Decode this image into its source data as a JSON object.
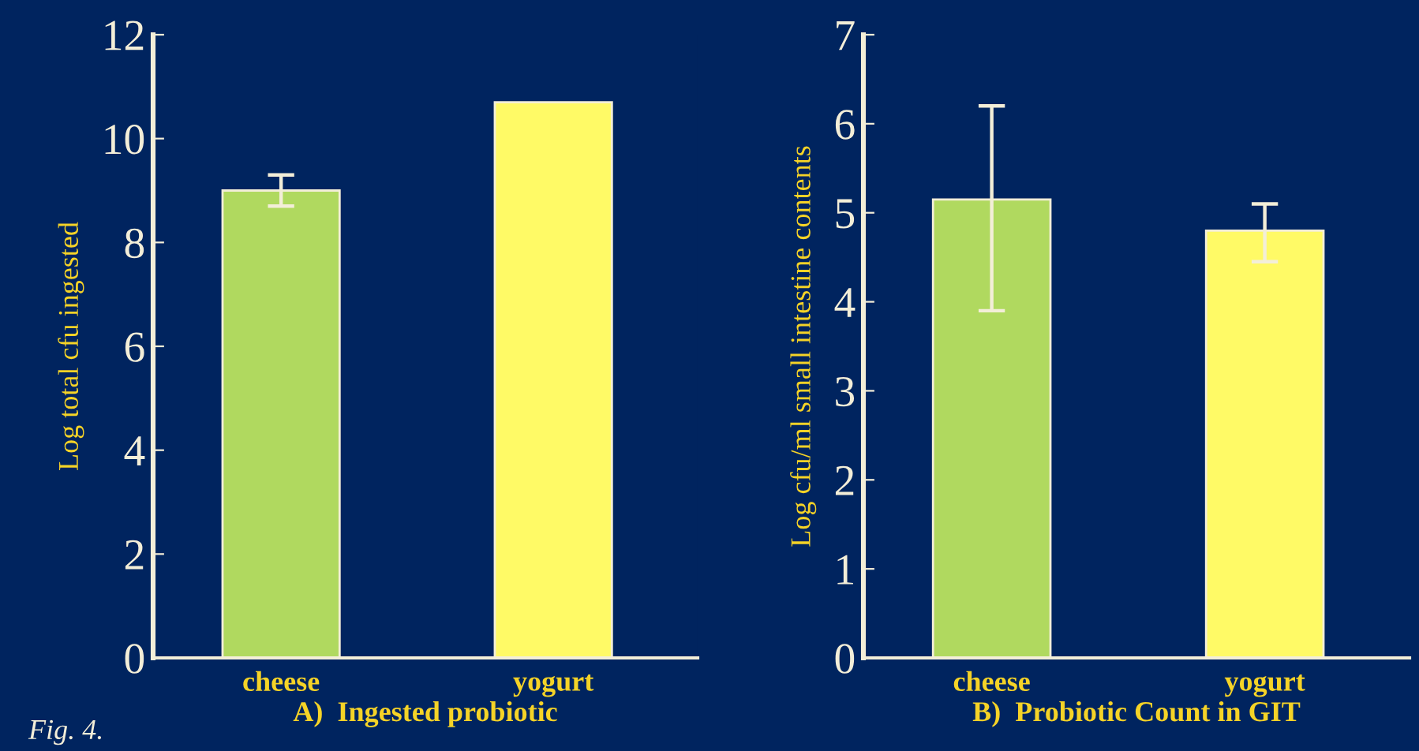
{
  "chart_data": [
    {
      "type": "bar",
      "categories": [
        "cheese",
        "yogurt"
      ],
      "values": [
        9.0,
        10.7
      ],
      "colors": [
        "#b0d95f",
        "#fffa66"
      ],
      "errors": [
        [
          8.7,
          9.3
        ],
        null
      ],
      "ylim": [
        0,
        12
      ],
      "yticks": [
        0,
        2,
        4,
        6,
        8,
        10,
        12
      ],
      "ylabel": "Log total cfu ingested",
      "xlabel": "A)  Ingested probiotic",
      "annotations": [
        "Fig. 4."
      ],
      "grid": false
    },
    {
      "type": "bar",
      "categories": [
        "cheese",
        "yogurt"
      ],
      "values": [
        5.15,
        4.8
      ],
      "colors": [
        "#b0d95f",
        "#fffa66"
      ],
      "errors": [
        [
          3.9,
          6.2
        ],
        [
          4.45,
          5.1
        ]
      ],
      "ylim": [
        0,
        7
      ],
      "yticks": [
        0,
        1,
        2,
        3,
        4,
        5,
        6,
        7
      ],
      "ylabel": "Log cfu/ml small intestine contents",
      "xlabel": "B)  Probiotic Count in GIT",
      "grid": false
    }
  ]
}
